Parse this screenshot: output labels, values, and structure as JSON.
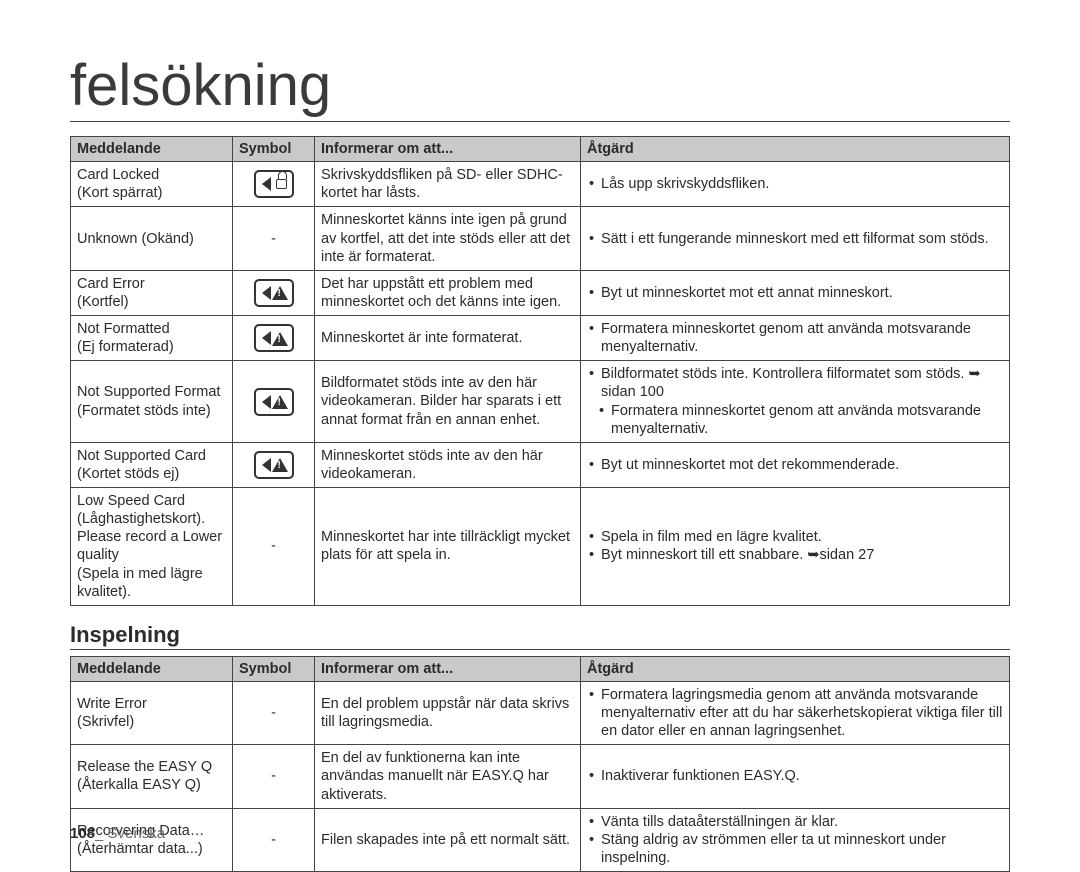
{
  "title": "felsökning",
  "columns": {
    "c0": "Meddelande",
    "c1": "Symbol",
    "c2": "Informerar om att...",
    "c3": "Åtgärd"
  },
  "table1": [
    {
      "msg": "Card Locked\n(Kort spärrat)",
      "icon": "lock",
      "info": "Skrivskyddsfliken på SD- eller SDHC-kortet har låsts.",
      "actions": [
        "Lås upp skrivskyddsfliken."
      ]
    },
    {
      "msg": "Unknown (Okänd)",
      "icon": "-",
      "info": "Minneskortet känns inte igen på grund av kortfel, att det inte stöds eller att det inte är formaterat.",
      "actions": [
        "Sätt i ett fungerande minneskort med ett filformat som stöds."
      ]
    },
    {
      "msg": "Card Error\n(Kortfel)",
      "icon": "warn",
      "info": "Det har uppstått ett problem med minneskortet och det känns inte igen.",
      "actions": [
        "Byt ut minneskortet mot ett annat minneskort."
      ]
    },
    {
      "msg": "Not Formatted\n(Ej formaterad)",
      "icon": "warn",
      "info": "Minneskortet är inte formaterat.",
      "actions": [
        "Formatera minneskortet genom att använda motsvarande menyalternativ."
      ]
    },
    {
      "msg": "Not Supported Format\n(Formatet stöds inte)",
      "icon": "warn",
      "info": "Bildformatet stöds inte av den här videokameran. Bilder har sparats i ett annat format från en annan enhet.",
      "actions": [
        "Bildformatet stöds inte. Kontrollera filformatet som stöds. ➥ sidan 100",
        {
          "indent": true,
          "text": "Formatera minneskortet genom att använda motsvarande menyalternativ."
        }
      ]
    },
    {
      "msg": "Not Supported Card\n(Kortet stöds ej)",
      "icon": "warn",
      "info": "Minneskortet stöds inte av den här videokameran.",
      "actions": [
        "Byt ut minneskortet mot det rekommenderade."
      ]
    },
    {
      "msg": "Low Speed Card (Låghastighetskort). Please record a Lower quality\n(Spela in med lägre kvalitet).",
      "icon": "-",
      "info": "Minneskortet har inte tillräckligt mycket plats för att spela in.",
      "actions": [
        "Spela in film med en lägre kvalitet.",
        "Byt minneskort till ett snabbare. ➥sidan 27"
      ]
    }
  ],
  "section2": "Inspelning",
  "table2": [
    {
      "msg": "Write Error\n(Skrivfel)",
      "icon": "-",
      "info": "En del problem uppstår när data skrivs till lagringsmedia.",
      "actions": [
        "Formatera lagringsmedia genom att använda motsvarande menyalternativ efter att du har säkerhetskopierat viktiga filer till en dator eller en annan lagringsenhet."
      ]
    },
    {
      "msg": "Release the EASY Q\n(Återkalla EASY Q)",
      "icon": "-",
      "info": "En del av funktionerna kan inte användas manuellt när EASY.Q har aktiverats.",
      "actions": [
        "Inaktiverar funktionen EASY.Q."
      ]
    },
    {
      "msg": "Recorvering Data…\n(Återhämtar data...)",
      "icon": "-",
      "info": "Filen skapades inte på ett normalt sätt.",
      "actions": [
        "Vänta tills dataåterställningen är klar.",
        "Stäng aldrig av strömmen eller ta ut minneskort under inspelning."
      ]
    }
  ],
  "footer": {
    "page": "108",
    "sep": "_ ",
    "lang": "Svenska"
  },
  "colwidths": {
    "c0": "162px",
    "c1": "82px",
    "c2": "260px",
    "c3": "auto"
  }
}
